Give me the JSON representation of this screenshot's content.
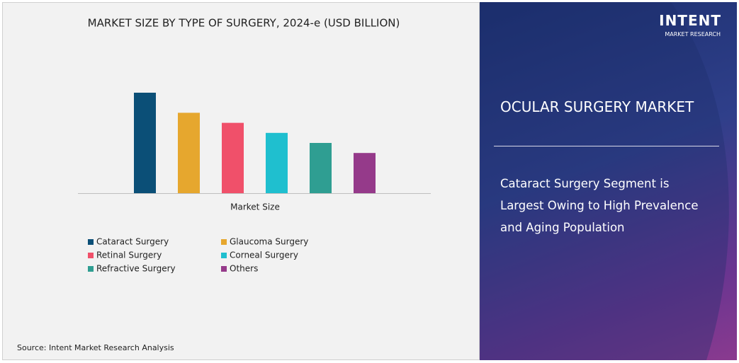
{
  "chart_data": {
    "type": "bar",
    "title": "MARKET SIZE BY TYPE OF SURGERY, 2024-e (USD BILLION)",
    "x_label": "Market Size",
    "categories": [
      "Market Size"
    ],
    "series": [
      {
        "name": "Cataract Surgery",
        "color": "#0b4f77",
        "values": [
          10
        ]
      },
      {
        "name": "Glaucoma Surgery",
        "color": "#e6a72e",
        "values": [
          8
        ]
      },
      {
        "name": "Retinal Surgery",
        "color": "#f0506a",
        "values": [
          7
        ]
      },
      {
        "name": "Corneal Surgery",
        "color": "#1fbfcf",
        "values": [
          6
        ]
      },
      {
        "name": "Refractive Surgery",
        "color": "#2f9e92",
        "values": [
          5
        ]
      },
      {
        "name": "Others",
        "color": "#953a8a",
        "values": [
          4
        ]
      }
    ]
  },
  "source": "Source:  Intent Market Research Analysis",
  "panel": {
    "title": "OCULAR SURGERY MARKET",
    "text": "Cataract Surgery Segment is Largest Owing to High Prevalence and Aging Population"
  },
  "logo": {
    "name": "INTENT",
    "sub": "MARKET RESEARCH"
  }
}
